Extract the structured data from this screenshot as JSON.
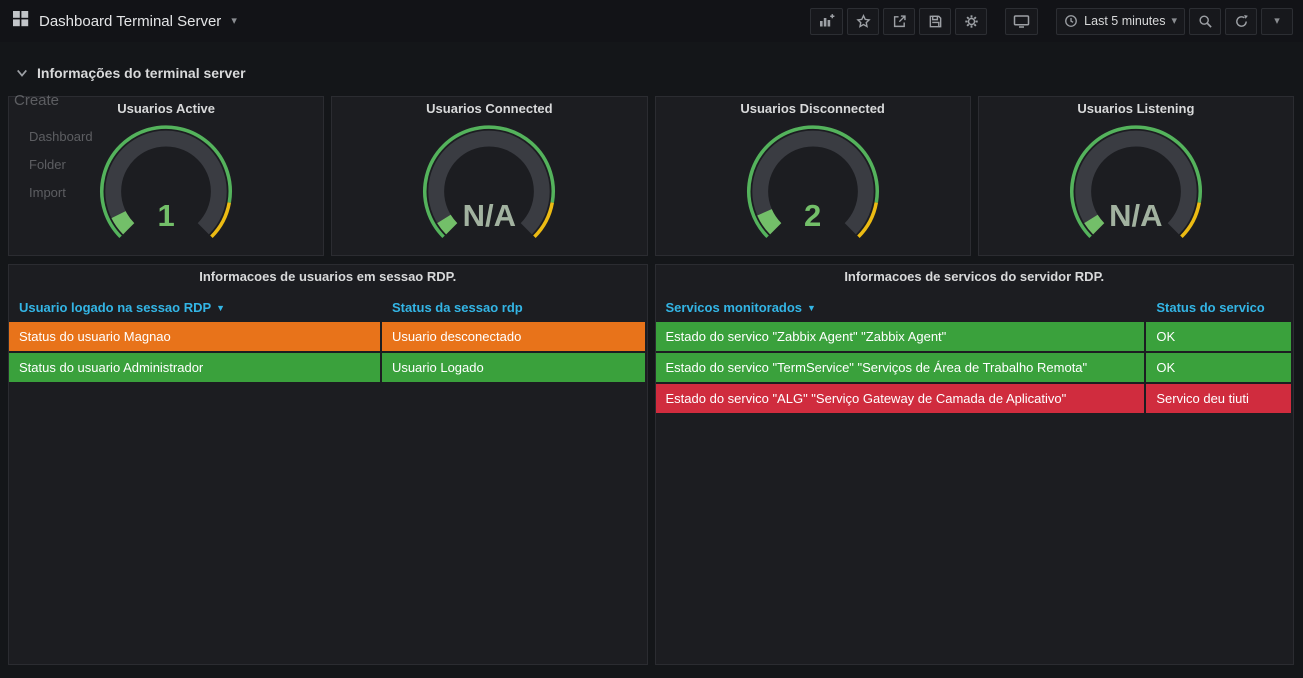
{
  "navbar": {
    "title": "Dashboard Terminal Server",
    "time_range": "Last 5 minutes",
    "icons": [
      "apps-grid",
      "add-panel",
      "star",
      "share",
      "save",
      "settings",
      "cycle-view",
      "clock",
      "zoom-out",
      "refresh",
      "refresh-interval-caret"
    ]
  },
  "ghost_menu": {
    "header": "Create",
    "items": [
      "Dashboard",
      "Folder",
      "Import"
    ]
  },
  "row": {
    "title": "Informações do terminal server"
  },
  "colors": {
    "accent_blue": "#33b5e5",
    "gauge_green": "#73bf69",
    "gauge_na": "#a2b2a0",
    "ring_green": "#54b35c",
    "ring_yellow": "#ecbb13",
    "row_orange": "#e8731a",
    "row_green": "#3aa13c",
    "row_red": "#d02c3e"
  },
  "gauges": [
    {
      "title": "Usuarios Active",
      "value": "1",
      "value_color": "#73bf69",
      "fraction": 0.07
    },
    {
      "title": "Usuarios Connected",
      "value": "N/A",
      "value_color": "#a2b2a0",
      "fraction": 0.05
    },
    {
      "title": "Usuarios Disconnected",
      "value": "2",
      "value_color": "#73bf69",
      "fraction": 0.08
    },
    {
      "title": "Usuarios Listening",
      "value": "N/A",
      "value_color": "#a2b2a0",
      "fraction": 0.05
    }
  ],
  "tables": [
    {
      "title": "Informacoes de usuarios em sessao RDP.",
      "columns": [
        {
          "label": "Usuario logado na sessao RDP",
          "sorted": true
        },
        {
          "label": "Status da sessao rdp",
          "sorted": false
        }
      ],
      "rows": [
        {
          "cells": [
            "Status do usuario Magnao",
            "Usuario desconectado"
          ],
          "color": "#e8731a"
        },
        {
          "cells": [
            "Status do usuario Administrador",
            "Usuario Logado"
          ],
          "color": "#3aa13c"
        }
      ]
    },
    {
      "title": "Informacoes de servicos do servidor RDP.",
      "columns": [
        {
          "label": "Servicos monitorados",
          "sorted": true
        },
        {
          "label": "Status do servico",
          "sorted": false
        }
      ],
      "rows": [
        {
          "cells": [
            "Estado do servico \"Zabbix Agent\" \"Zabbix Agent\"",
            "OK"
          ],
          "color": "#3aa13c"
        },
        {
          "cells": [
            "Estado do servico \"TermService\" \"Serviços de Área de Trabalho Remota\"",
            "OK"
          ],
          "color": "#3aa13c"
        },
        {
          "cells": [
            "Estado do servico \"ALG\" \"Serviço Gateway de Camada de Aplicativo\"",
            "Servico deu tiuti"
          ],
          "color": "#d02c3e"
        }
      ]
    }
  ]
}
